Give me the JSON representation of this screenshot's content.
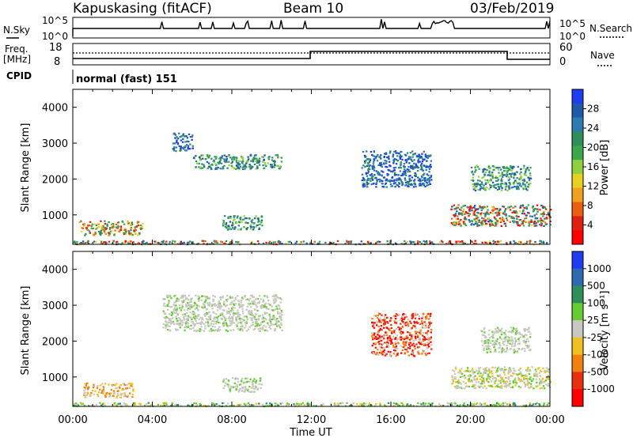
{
  "header": {
    "station": "Kapuskasing (fitACF)",
    "beam": "Beam 10",
    "date": "03/Feb/2019"
  },
  "top_panels": {
    "nsky_label": "N.Sky",
    "nsky_ticks": [
      "10^5",
      "10^0"
    ],
    "nsearch_label": "N.Search",
    "nsearch_ticks": [
      "10^5",
      "10^0"
    ],
    "freq_label_1": "Freq.",
    "freq_label_2": "[MHz]",
    "freq_ticks": [
      "18",
      "8"
    ],
    "nave_label": "Nave",
    "nave_ticks": [
      "60",
      "0"
    ],
    "cpid_label": "CPID",
    "cpid_value": "normal (fast) 151"
  },
  "chart_data": [
    {
      "type": "heatmap",
      "name": "power-panel",
      "xlabel": "",
      "ylabel": "Slant Range [km]",
      "x_ticks": [
        "00:00",
        "04:00",
        "08:00",
        "12:00",
        "16:00",
        "20:00",
        "00:00"
      ],
      "xlim_hours": [
        0,
        24
      ],
      "y_ticks": [
        1000,
        2000,
        3000,
        4000
      ],
      "ylim_km": [
        180,
        4500
      ],
      "colorbar": {
        "label": "Power [dB]",
        "ticks": [
          "4",
          "8",
          "12",
          "16",
          "20",
          "24",
          "28"
        ],
        "colors": [
          "#1f3cf0",
          "#1f5aa8",
          "#2e7bb0",
          "#2f8f5a",
          "#3aa84a",
          "#8fd040",
          "#e8d020",
          "#f0a020",
          "#e86010",
          "#e02010",
          "#ff0000"
        ]
      },
      "echo_regions": [
        {
          "t0": 0.0,
          "t1": 24.0,
          "r0": 200,
          "r1": 300,
          "mix": "high"
        },
        {
          "t0": 0.3,
          "t1": 3.5,
          "r0": 450,
          "r1": 850,
          "mix": "mid-high"
        },
        {
          "t0": 5.0,
          "t1": 6.0,
          "r0": 2800,
          "r1": 3300,
          "mix": "low"
        },
        {
          "t0": 6.0,
          "t1": 10.5,
          "r0": 2300,
          "r1": 2700,
          "mix": "mid"
        },
        {
          "t0": 7.5,
          "t1": 9.5,
          "r0": 600,
          "r1": 1000,
          "mix": "mid"
        },
        {
          "t0": 14.5,
          "t1": 18.0,
          "r0": 1800,
          "r1": 2800,
          "mix": "low"
        },
        {
          "t0": 19.0,
          "t1": 24.0,
          "r0": 700,
          "r1": 1300,
          "mix": "high"
        },
        {
          "t0": 20.0,
          "t1": 23.0,
          "r0": 1700,
          "r1": 2400,
          "mix": "mid"
        }
      ]
    },
    {
      "type": "heatmap",
      "name": "velocity-panel",
      "xlabel": "Time UT",
      "ylabel": "Slant Range [km]",
      "x_ticks": [
        "00:00",
        "04:00",
        "08:00",
        "12:00",
        "16:00",
        "20:00",
        "00:00"
      ],
      "xlim_hours": [
        0,
        24
      ],
      "y_ticks": [
        1000,
        2000,
        3000,
        4000
      ],
      "ylim_km": [
        180,
        4500
      ],
      "colorbar": {
        "label": "Velocity [m s⁻¹]",
        "ticks": [
          "1000",
          "500",
          "100",
          "25",
          "-25",
          "-100",
          "-500",
          "-1000"
        ],
        "colors": [
          "#1f3cf0",
          "#2e6ab0",
          "#2f8f5a",
          "#66cc33",
          "#c8c8c0",
          "#f0c020",
          "#f08010",
          "#e83010",
          "#ff0000"
        ]
      },
      "echo_regions": [
        {
          "t0": 0.0,
          "t1": 24.0,
          "r0": 200,
          "r1": 300,
          "mix": "green"
        },
        {
          "t0": 0.5,
          "t1": 3.0,
          "r0": 450,
          "r1": 850,
          "mix": "orange"
        },
        {
          "t0": 4.5,
          "t1": 10.5,
          "r0": 2300,
          "r1": 3300,
          "mix": "gray"
        },
        {
          "t0": 7.5,
          "t1": 9.5,
          "r0": 600,
          "r1": 1000,
          "mix": "gray"
        },
        {
          "t0": 15.0,
          "t1": 18.0,
          "r0": 1600,
          "r1": 2800,
          "mix": "red-gray"
        },
        {
          "t0": 19.0,
          "t1": 24.0,
          "r0": 700,
          "r1": 1300,
          "mix": "gray-yellow"
        },
        {
          "t0": 20.5,
          "t1": 23.0,
          "r0": 1700,
          "r1": 2400,
          "mix": "gray"
        }
      ]
    }
  ]
}
